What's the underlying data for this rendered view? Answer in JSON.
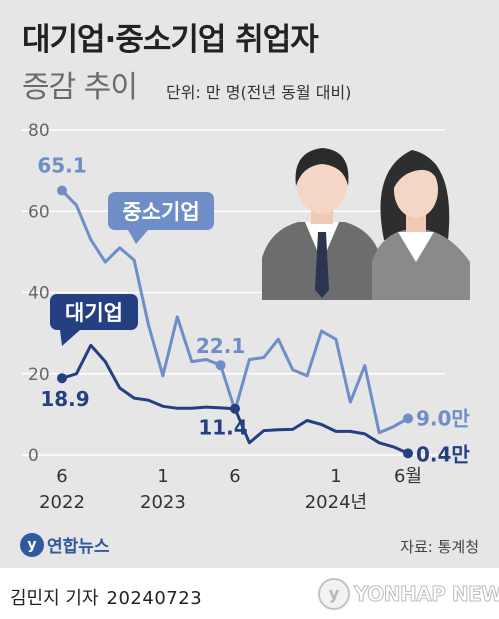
{
  "header": {
    "title": "대기업·중소기업 취업자",
    "subtitle": "증감 추이",
    "unit_note": "단위: 만 명(전년 동월 대비)"
  },
  "colors": {
    "panel_bg": "#e6e6e6",
    "large_firms": "#243f82",
    "small_firms": "#6f8dc6",
    "grid": "#ffffff",
    "axis_text": "#444444"
  },
  "chart_data": {
    "type": "line",
    "title": "대기업·중소기업 취업자 증감 추이",
    "unit": "단위: 만 명(전년 동월 대비)",
    "x": [
      "2022-06",
      "2022-07",
      "2022-08",
      "2022-09",
      "2022-10",
      "2022-11",
      "2022-12",
      "2023-01",
      "2023-02",
      "2023-03",
      "2023-04",
      "2023-05",
      "2023-06",
      "2023-07",
      "2023-08",
      "2023-09",
      "2023-10",
      "2023-11",
      "2023-12",
      "2024-01",
      "2024-02",
      "2024-03",
      "2024-04",
      "2024-05",
      "2024-06"
    ],
    "ylim": [
      0,
      80
    ],
    "yticks": [
      0,
      20,
      40,
      60,
      80
    ],
    "grid": true,
    "xtick_labels": [
      {
        "x": "2022-06",
        "month": "6",
        "year": "2022"
      },
      {
        "x": "2023-01",
        "month": "1",
        "year": "2023"
      },
      {
        "x": "2023-06",
        "month": "6",
        "year": ""
      },
      {
        "x": "2024-01",
        "month": "1",
        "year": "2024년"
      },
      {
        "x": "2024-06",
        "month": "6월",
        "year": ""
      }
    ],
    "series": [
      {
        "name": "중소기업",
        "color": "#6f8dc6",
        "values": [
          65.1,
          61.5,
          53.0,
          47.5,
          51.0,
          48.0,
          32.0,
          19.5,
          34.0,
          23.0,
          23.5,
          22.1,
          11.0,
          23.5,
          24.0,
          28.5,
          21.0,
          19.5,
          30.5,
          28.5,
          13.0,
          22.0,
          5.5,
          7.0,
          9.0
        ],
        "labels": [
          {
            "x": "2022-06",
            "text": "65.1"
          },
          {
            "x": "2023-05",
            "text": "22.1"
          },
          {
            "x": "2024-06",
            "text": "9.0만"
          }
        ]
      },
      {
        "name": "대기업",
        "color": "#243f82",
        "values": [
          18.9,
          20.0,
          27.0,
          23.0,
          16.5,
          14.0,
          13.5,
          12.0,
          11.5,
          11.5,
          11.8,
          11.6,
          11.4,
          3.0,
          6.0,
          6.2,
          6.3,
          8.5,
          7.5,
          5.8,
          5.8,
          5.2,
          3.0,
          2.0,
          0.4
        ],
        "labels": [
          {
            "x": "2022-06",
            "text": "18.9"
          },
          {
            "x": "2023-06",
            "text": "11.4"
          },
          {
            "x": "2024-06",
            "text": "0.4만"
          }
        ]
      }
    ]
  },
  "footer": {
    "logo_text": "연합뉴스",
    "source": "자료: 통계청",
    "author": "김민지 기자",
    "date": "20240723",
    "watermark": "YONHAP NEWS"
  }
}
